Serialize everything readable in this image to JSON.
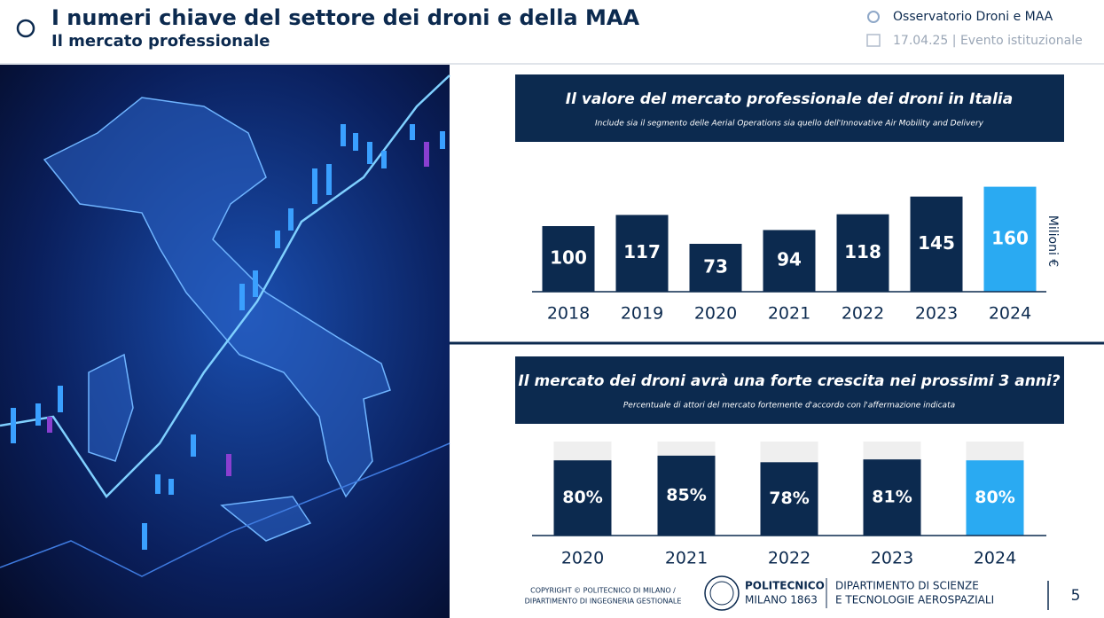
{
  "header": {
    "title": "I numeri chiave del settore dei droni e della MAA",
    "subtitle": "Il mercato professionale",
    "program": "Osservatorio Droni e MAA",
    "event": "17.04.25 | Evento istituzionale"
  },
  "chart_data": [
    {
      "type": "bar",
      "title": "Il valore del mercato professionale dei droni in Italia",
      "subtitle": "Include sia il segmento delle Aerial Operations sia quello dell'Innovative Air Mobility and Delivery",
      "y_label": "Milioni €",
      "categories": [
        "2018",
        "2019",
        "2020",
        "2021",
        "2022",
        "2023",
        "2024"
      ],
      "values": [
        100,
        117,
        73,
        94,
        118,
        145,
        160
      ],
      "colors": [
        "#0c2a4f",
        "#0c2a4f",
        "#0c2a4f",
        "#0c2a4f",
        "#0c2a4f",
        "#0c2a4f",
        "#2aaaf2"
      ]
    },
    {
      "type": "bar",
      "title": "Il mercato dei droni avrà una forte crescita nei prossimi 3 anni?",
      "subtitle": "Percentuale di attori del mercato fortemente d'accordo con l'affermazione indicata",
      "categories": [
        "2020",
        "2021",
        "2022",
        "2023",
        "2024"
      ],
      "values": [
        80,
        85,
        78,
        81,
        80
      ],
      "value_labels": [
        "80%",
        "85%",
        "78%",
        "81%",
        "80%"
      ],
      "ylim": [
        0,
        100
      ],
      "track_color": "#efefef",
      "colors": [
        "#0c2a4f",
        "#0c2a4f",
        "#0c2a4f",
        "#0c2a4f",
        "#2aaaf2"
      ]
    }
  ],
  "footer": {
    "copyright": [
      "COPYRIGHT © POLITECNICO DI MILANO /",
      "DIPARTIMENTO DI INGEGNERIA GESTIONALE"
    ],
    "logo": [
      "POLITECNICO",
      "MILANO 1863"
    ],
    "department": [
      "DIPARTIMENTO DI SCIENZE",
      "E TECNOLOGIE AEROSPAZIALI"
    ],
    "page": "5"
  }
}
